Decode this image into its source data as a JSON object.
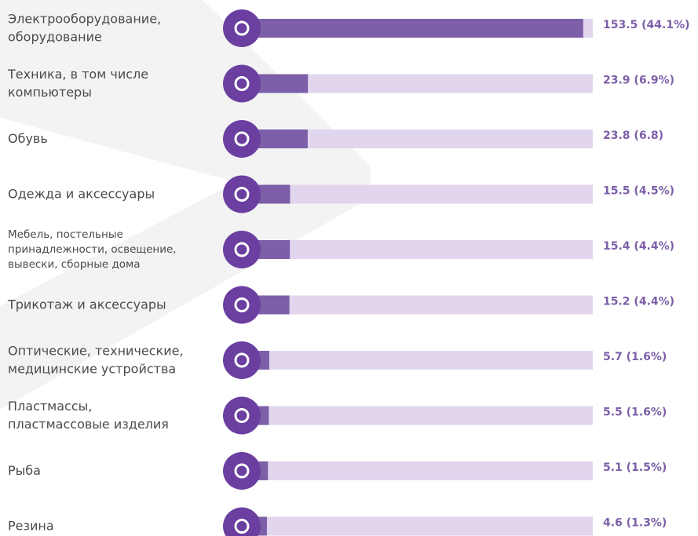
{
  "chart_data": {
    "type": "bar",
    "orientation": "horizontal",
    "categories": [
      [
        "Электрооборудование,",
        "оборудование"
      ],
      [
        "Техника, в том числе",
        "компьютеры"
      ],
      [
        "Обувь"
      ],
      [
        "Одежда и аксессуары"
      ],
      [
        "Мебель, постельные",
        "принадлежности, освещение,",
        "вывески,  сборные дома"
      ],
      [
        "Трикотаж и аксессуары"
      ],
      [
        "Оптические, технические,",
        "медицинские устройства"
      ],
      [
        "Пластмассы,",
        "пластмассовые изделия"
      ],
      [
        "Рыба"
      ],
      [
        "Резина"
      ]
    ],
    "values": [
      153.5,
      23.9,
      23.8,
      15.5,
      15.4,
      15.2,
      5.7,
      5.5,
      5.1,
      4.6
    ],
    "value_labels": [
      "153.5 (44.1%)",
      "23.9 (6.9%)",
      "23.8 (6.8)",
      "15.5 (4.5%)",
      "15.4 (4.4%)",
      "15.2 (4.4%)",
      "5.7 (1.6%)",
      "5.5 (1.6%)",
      "5.1 (1.5%)",
      "4.6 (1.3%)"
    ],
    "xlim": [
      0,
      158
    ],
    "color": "#7c5fa8",
    "track_color": "#e2d6ee"
  }
}
